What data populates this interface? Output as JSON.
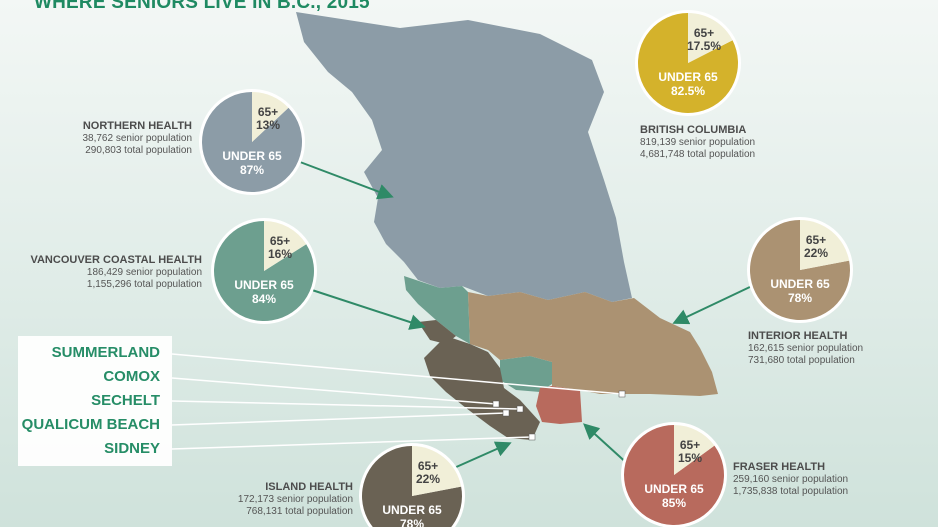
{
  "title": "WHERE SENIORS LIVE IN B.C., 2015",
  "colors": {
    "title": "#1f8a62",
    "northern": "#8c9ca7",
    "vancouver_coastal": "#6d9f8f",
    "interior": "#ab9272",
    "fraser": "#b86a5d",
    "island": "#6a6254",
    "british_columbia": "#d4b22b",
    "senior_slice": "#f1efd8",
    "arrow": "#2f8a67"
  },
  "towns": [
    "SUMMERLAND",
    "COMOX",
    "SECHELT",
    "QUALICUM BEACH",
    "SIDNEY"
  ],
  "chart_data": [
    {
      "type": "pie",
      "id": "british_columbia",
      "region": "BRITISH COLUMBIA",
      "senior_population": "819,139 senior population",
      "total_population": "4,681,748 total population",
      "slices": [
        {
          "label": "65+",
          "pct": "17.5%",
          "value": 17.5
        },
        {
          "label": "UNDER 65",
          "pct": "82.5%",
          "value": 82.5
        }
      ]
    },
    {
      "type": "pie",
      "id": "northern",
      "region": "NORTHERN HEALTH",
      "senior_population": "38,762 senior population",
      "total_population": "290,803 total population",
      "slices": [
        {
          "label": "65+",
          "pct": "13%",
          "value": 13
        },
        {
          "label": "UNDER 65",
          "pct": "87%",
          "value": 87
        }
      ]
    },
    {
      "type": "pie",
      "id": "vancouver_coastal",
      "region": "VANCOUVER COASTAL HEALTH",
      "senior_population": "186,429 senior population",
      "total_population": "1,155,296 total population",
      "slices": [
        {
          "label": "65+",
          "pct": "16%",
          "value": 16
        },
        {
          "label": "UNDER 65",
          "pct": "84%",
          "value": 84
        }
      ]
    },
    {
      "type": "pie",
      "id": "interior",
      "region": "INTERIOR HEALTH",
      "senior_population": "162,615 senior population",
      "total_population": "731,680 total population",
      "slices": [
        {
          "label": "65+",
          "pct": "22%",
          "value": 22
        },
        {
          "label": "UNDER 65",
          "pct": "78%",
          "value": 78
        }
      ]
    },
    {
      "type": "pie",
      "id": "fraser",
      "region": "FRASER HEALTH",
      "senior_population": "259,160 senior population",
      "total_population": "1,735,838 total population",
      "slices": [
        {
          "label": "65+",
          "pct": "15%",
          "value": 15
        },
        {
          "label": "UNDER 65",
          "pct": "85%",
          "value": 85
        }
      ]
    },
    {
      "type": "pie",
      "id": "island",
      "region": "ISLAND HEALTH",
      "senior_population": "172,173 senior population",
      "total_population": "768,131 total population",
      "slices": [
        {
          "label": "65+",
          "pct": "22%",
          "value": 22
        },
        {
          "label": "UNDER 65",
          "pct": "78%",
          "value": 78
        }
      ]
    }
  ]
}
